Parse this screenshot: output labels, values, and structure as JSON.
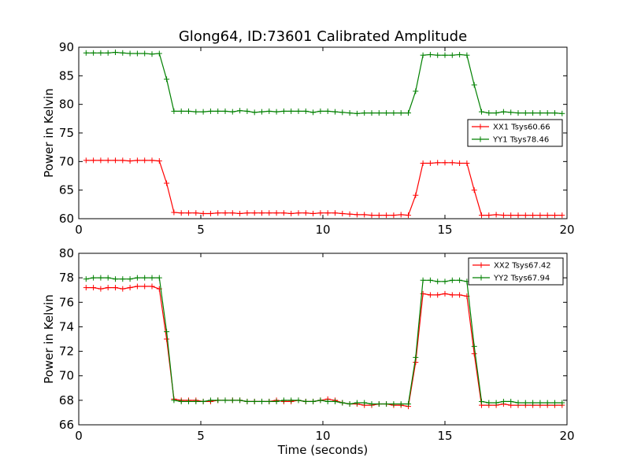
{
  "chart_data": [
    {
      "type": "line",
      "title": "Glong64, ID:73601 Calibrated Amplitude",
      "xlabel": "",
      "ylabel": "Power in Kelvin",
      "xlim": [
        0,
        20
      ],
      "ylim": [
        60,
        90
      ],
      "xticks": [
        0,
        5,
        10,
        15,
        20
      ],
      "yticks": [
        60,
        65,
        70,
        75,
        80,
        85,
        90
      ],
      "grid": false,
      "legend_position": "right",
      "x": [
        0.3,
        0.6,
        0.9,
        1.2,
        1.5,
        1.8,
        2.1,
        2.4,
        2.7,
        3.0,
        3.3,
        3.6,
        3.9,
        4.2,
        4.5,
        4.8,
        5.1,
        5.4,
        5.7,
        6.0,
        6.3,
        6.6,
        6.9,
        7.2,
        7.5,
        7.8,
        8.1,
        8.4,
        8.7,
        9.0,
        9.3,
        9.6,
        9.9,
        10.2,
        10.5,
        10.8,
        11.1,
        11.4,
        11.7,
        12.0,
        12.3,
        12.6,
        12.9,
        13.2,
        13.5,
        13.8,
        14.1,
        14.4,
        14.7,
        15.0,
        15.3,
        15.6,
        15.9,
        16.2,
        16.5,
        16.8,
        17.1,
        17.4,
        17.7,
        18.0,
        18.3,
        18.6,
        18.9,
        19.2,
        19.5,
        19.8
      ],
      "series": [
        {
          "name": "XX1 Tsys60.66",
          "color": "#ff0000",
          "values": [
            70.2,
            70.2,
            70.2,
            70.2,
            70.2,
            70.2,
            70.1,
            70.2,
            70.2,
            70.2,
            70.1,
            66.2,
            61.1,
            61.0,
            61.0,
            61.0,
            60.9,
            60.9,
            61.0,
            61.0,
            61.0,
            60.9,
            61.0,
            61.0,
            61.0,
            61.0,
            61.0,
            61.0,
            60.9,
            61.0,
            61.0,
            60.9,
            61.0,
            61.0,
            61.0,
            60.9,
            60.8,
            60.7,
            60.7,
            60.6,
            60.6,
            60.6,
            60.6,
            60.7,
            60.6,
            64.1,
            69.7,
            69.7,
            69.8,
            69.8,
            69.8,
            69.7,
            69.7,
            65.0,
            60.6,
            60.6,
            60.7,
            60.6,
            60.6,
            60.6,
            60.6,
            60.6,
            60.6,
            60.6,
            60.6,
            60.6
          ]
        },
        {
          "name": "YY1 Tsys78.46",
          "color": "#008000",
          "values": [
            89.0,
            89.0,
            89.0,
            89.0,
            89.1,
            89.0,
            88.9,
            88.9,
            88.9,
            88.8,
            88.9,
            84.4,
            78.8,
            78.8,
            78.8,
            78.7,
            78.7,
            78.8,
            78.8,
            78.8,
            78.7,
            78.9,
            78.8,
            78.6,
            78.7,
            78.8,
            78.7,
            78.8,
            78.8,
            78.8,
            78.8,
            78.6,
            78.8,
            78.8,
            78.7,
            78.6,
            78.5,
            78.4,
            78.5,
            78.5,
            78.5,
            78.5,
            78.5,
            78.5,
            78.5,
            82.3,
            88.6,
            88.7,
            88.6,
            88.6,
            88.6,
            88.7,
            88.6,
            83.4,
            78.7,
            78.5,
            78.5,
            78.7,
            78.6,
            78.5,
            78.5,
            78.5,
            78.5,
            78.5,
            78.5,
            78.4
          ]
        }
      ]
    },
    {
      "type": "line",
      "title": "",
      "xlabel": "Time (seconds)",
      "ylabel": "Power in Kelvin",
      "xlim": [
        0,
        20
      ],
      "ylim": [
        66,
        80
      ],
      "xticks": [
        0,
        5,
        10,
        15,
        20
      ],
      "yticks": [
        66,
        68,
        70,
        72,
        74,
        76,
        78,
        80
      ],
      "grid": false,
      "legend_position": "top-right",
      "x": [
        0.3,
        0.6,
        0.9,
        1.2,
        1.5,
        1.8,
        2.1,
        2.4,
        2.7,
        3.0,
        3.3,
        3.6,
        3.9,
        4.2,
        4.5,
        4.8,
        5.1,
        5.4,
        5.7,
        6.0,
        6.3,
        6.6,
        6.9,
        7.2,
        7.5,
        7.8,
        8.1,
        8.4,
        8.7,
        9.0,
        9.3,
        9.6,
        9.9,
        10.2,
        10.5,
        10.8,
        11.1,
        11.4,
        11.7,
        12.0,
        12.3,
        12.6,
        12.9,
        13.2,
        13.5,
        13.8,
        14.1,
        14.4,
        14.7,
        15.0,
        15.3,
        15.6,
        15.9,
        16.2,
        16.5,
        16.8,
        17.1,
        17.4,
        17.7,
        18.0,
        18.3,
        18.6,
        18.9,
        19.2,
        19.5,
        19.8
      ],
      "series": [
        {
          "name": "XX2 Tsys67.42",
          "color": "#ff0000",
          "values": [
            77.2,
            77.2,
            77.1,
            77.2,
            77.2,
            77.1,
            77.2,
            77.3,
            77.3,
            77.3,
            77.1,
            73.0,
            68.1,
            68.0,
            68.0,
            68.0,
            67.9,
            67.9,
            68.0,
            68.0,
            68.0,
            68.0,
            67.9,
            67.9,
            67.9,
            67.9,
            68.0,
            67.9,
            67.9,
            68.0,
            67.9,
            67.9,
            68.0,
            68.1,
            68.0,
            67.8,
            67.7,
            67.7,
            67.6,
            67.6,
            67.7,
            67.7,
            67.6,
            67.6,
            67.5,
            71.1,
            76.7,
            76.6,
            76.6,
            76.7,
            76.6,
            76.6,
            76.5,
            71.8,
            67.6,
            67.6,
            67.6,
            67.7,
            67.6,
            67.6,
            67.6,
            67.6,
            67.6,
            67.6,
            67.6,
            67.6
          ]
        },
        {
          "name": "YY2 Tsys67.94",
          "color": "#008000",
          "values": [
            77.9,
            78.0,
            78.0,
            78.0,
            77.9,
            77.9,
            77.9,
            78.0,
            78.0,
            78.0,
            78.0,
            73.6,
            68.0,
            67.9,
            67.9,
            67.9,
            67.9,
            68.0,
            68.0,
            68.0,
            68.0,
            68.0,
            67.9,
            67.9,
            67.9,
            67.9,
            67.9,
            68.0,
            68.0,
            68.0,
            67.9,
            67.9,
            68.0,
            67.9,
            67.9,
            67.8,
            67.7,
            67.8,
            67.8,
            67.7,
            67.7,
            67.7,
            67.7,
            67.7,
            67.7,
            71.5,
            77.8,
            77.8,
            77.7,
            77.7,
            77.8,
            77.8,
            77.7,
            72.4,
            67.9,
            67.8,
            67.8,
            67.9,
            67.9,
            67.8,
            67.8,
            67.8,
            67.8,
            67.8,
            67.8,
            67.8
          ]
        }
      ]
    }
  ]
}
